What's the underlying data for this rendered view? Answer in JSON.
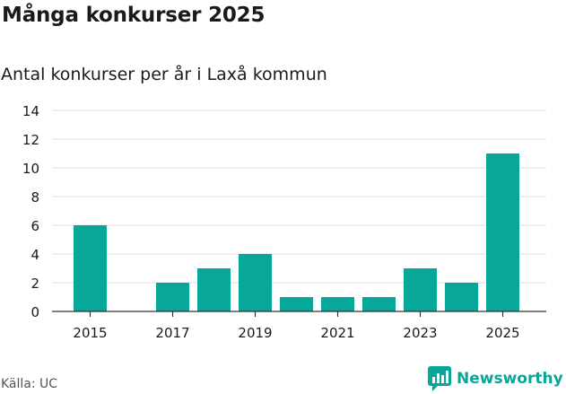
{
  "header": {
    "title": "Många konkurser 2025",
    "subtitle": "Antal konkurser per år i Laxå kommun"
  },
  "footer": {
    "source": "Källa: UC",
    "brand": "Newsworthy",
    "brand_icon": "newsworthy-logo-icon"
  },
  "colors": {
    "bar": "#07a79a",
    "brand": "#0aa599",
    "grid": "#dcdcdc",
    "text": "#1a1a1a"
  },
  "chart_data": {
    "type": "bar",
    "title": "Många konkurser 2025",
    "subtitle": "Antal konkurser per år i Laxå kommun",
    "categories": [
      "2015",
      "2016",
      "2017",
      "2018",
      "2019",
      "2020",
      "2021",
      "2022",
      "2023",
      "2024",
      "2025"
    ],
    "values": [
      6,
      0,
      2,
      3,
      4,
      1,
      1,
      1,
      3,
      2,
      11
    ],
    "x_tick_labels": [
      "2015",
      "2017",
      "2019",
      "2021",
      "2023",
      "2025"
    ],
    "y_ticks": [
      0,
      2,
      4,
      6,
      8,
      10,
      12,
      14
    ],
    "ylim": [
      0,
      14
    ],
    "xlabel": "",
    "ylabel": "",
    "grid": true,
    "legend": "none"
  }
}
